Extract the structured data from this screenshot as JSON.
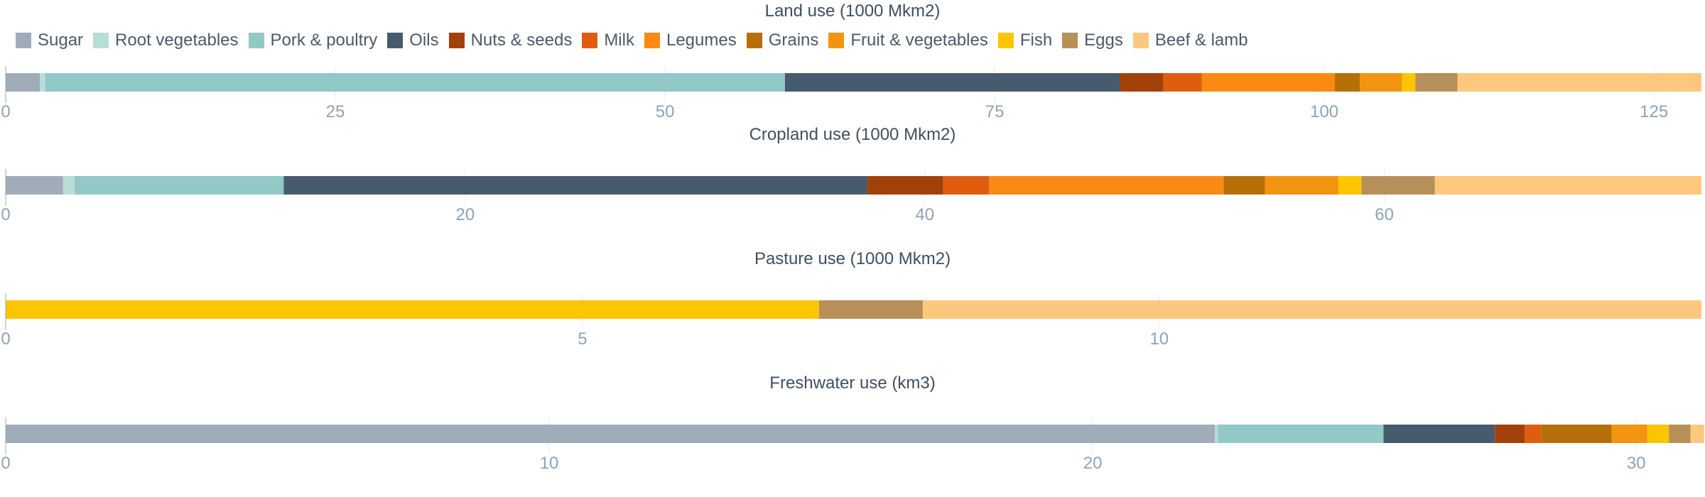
{
  "legend": [
    {
      "name": "Sugar",
      "color": "#a0adb9"
    },
    {
      "name": "Root vegetables",
      "color": "#b8ddd8"
    },
    {
      "name": "Pork & poultry",
      "color": "#92c8c6"
    },
    {
      "name": "Oils",
      "color": "#475b6e"
    },
    {
      "name": "Nuts & seeds",
      "color": "#a3410b"
    },
    {
      "name": "Milk",
      "color": "#e05d10"
    },
    {
      "name": "Legumes",
      "color": "#fb8a14"
    },
    {
      "name": "Grains",
      "color": "#b76f0a"
    },
    {
      "name": "Fruit & vegetables",
      "color": "#f39410"
    },
    {
      "name": "Fish",
      "color": "#fdc500"
    },
    {
      "name": "Eggs",
      "color": "#b78f58"
    },
    {
      "name": "Beef & lamb",
      "color": "#fdc87e"
    }
  ],
  "chart_data": [
    {
      "type": "bar",
      "orientation": "horizontal",
      "stacked": true,
      "title": "Land use (1000 Mkm2)",
      "xlim": [
        0,
        128.6
      ],
      "ticks": [
        0,
        25,
        50,
        75,
        100,
        125
      ],
      "series": [
        {
          "name": "Sugar",
          "value": 2.6
        },
        {
          "name": "Root vegetables",
          "value": 0.4
        },
        {
          "name": "Pork & poultry",
          "value": 56.1
        },
        {
          "name": "Oils",
          "value": 25.4
        },
        {
          "name": "Nuts & seeds",
          "value": 3.3
        },
        {
          "name": "Milk",
          "value": 2.9
        },
        {
          "name": "Legumes",
          "value": 10.1
        },
        {
          "name": "Grains",
          "value": 1.9
        },
        {
          "name": "Fruit & vegetables",
          "value": 3.2
        },
        {
          "name": "Fish",
          "value": 1.0
        },
        {
          "name": "Eggs",
          "value": 3.2
        },
        {
          "name": "Beef & lamb",
          "value": 18.5
        }
      ]
    },
    {
      "type": "bar",
      "orientation": "horizontal",
      "stacked": true,
      "title": "Cropland use (1000 Mkm2)",
      "xlim": [
        0,
        73.8
      ],
      "ticks": [
        0,
        20,
        40,
        60
      ],
      "series": [
        {
          "name": "Sugar",
          "value": 2.5
        },
        {
          "name": "Root vegetables",
          "value": 0.5
        },
        {
          "name": "Pork & poultry",
          "value": 9.1
        },
        {
          "name": "Oils",
          "value": 25.4
        },
        {
          "name": "Nuts & seeds",
          "value": 3.3
        },
        {
          "name": "Milk",
          "value": 2.0
        },
        {
          "name": "Legumes",
          "value": 10.2
        },
        {
          "name": "Grains",
          "value": 1.8
        },
        {
          "name": "Fruit & vegetables",
          "value": 3.2
        },
        {
          "name": "Fish",
          "value": 1.0
        },
        {
          "name": "Eggs",
          "value": 3.2
        },
        {
          "name": "Beef & lamb",
          "value": 11.6
        }
      ]
    },
    {
      "type": "bar",
      "orientation": "horizontal",
      "stacked": true,
      "title": "Pasture use (1000 Mkm2)",
      "xlim": [
        0,
        14.7
      ],
      "ticks": [
        0,
        5,
        10
      ],
      "series": [
        {
          "name": "Fish",
          "value": 7.05
        },
        {
          "name": "Eggs",
          "value": 0.9
        },
        {
          "name": "Beef & lamb",
          "value": 6.75
        }
      ]
    },
    {
      "type": "bar",
      "orientation": "horizontal",
      "stacked": true,
      "title": "Freshwater use (km3)",
      "xlim": [
        0,
        31.2
      ],
      "ticks": [
        0,
        10,
        20,
        30
      ],
      "series": [
        {
          "name": "Sugar",
          "value": 22.25
        },
        {
          "name": "Root vegetables",
          "value": 0.05
        },
        {
          "name": "Pork & poultry",
          "value": 3.05
        },
        {
          "name": "Oils",
          "value": 2.05
        },
        {
          "name": "Nuts & seeds",
          "value": 0.55
        },
        {
          "name": "Milk",
          "value": 0.3
        },
        {
          "name": "Grains",
          "value": 1.3
        },
        {
          "name": "Fruit & vegetables",
          "value": 0.65
        },
        {
          "name": "Fish",
          "value": 0.4
        },
        {
          "name": "Eggs",
          "value": 0.4
        },
        {
          "name": "Beef & lamb",
          "value": 0.25
        }
      ]
    }
  ]
}
